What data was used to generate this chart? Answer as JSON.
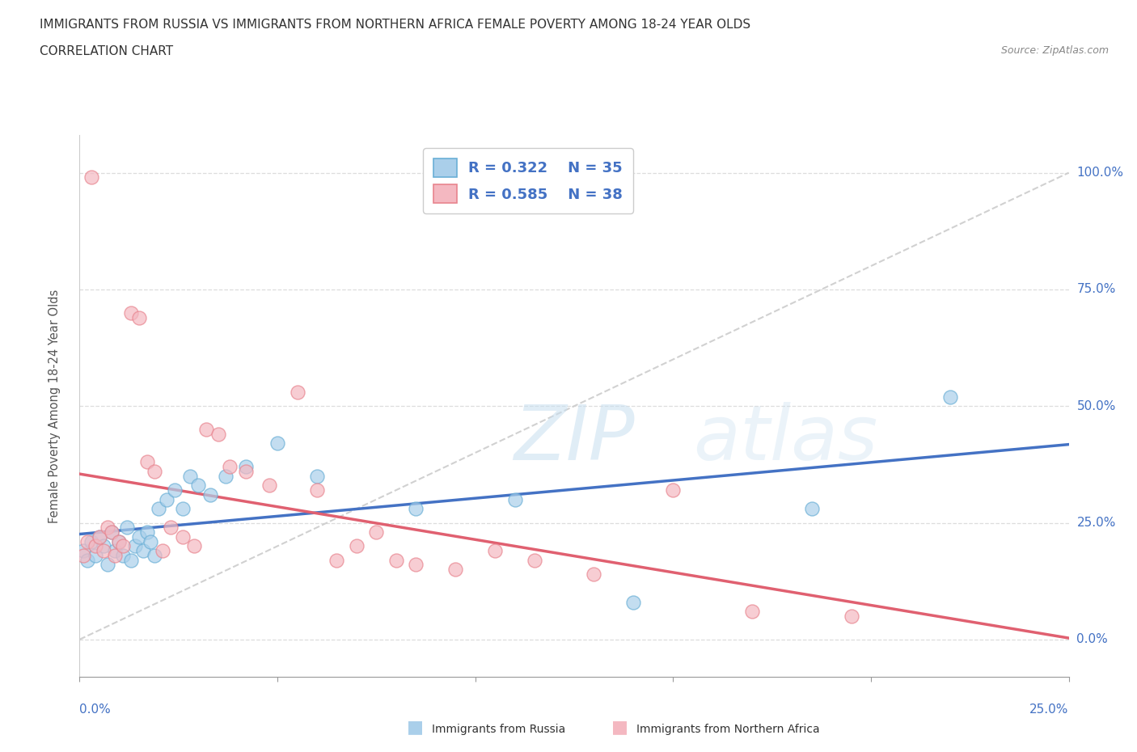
{
  "title": "IMMIGRANTS FROM RUSSIA VS IMMIGRANTS FROM NORTHERN AFRICA FEMALE POVERTY AMONG 18-24 YEAR OLDS",
  "subtitle": "CORRELATION CHART",
  "source": "Source: ZipAtlas.com",
  "ylabel": "Female Poverty Among 18-24 Year Olds",
  "ytick_vals": [
    0,
    25,
    50,
    75,
    100
  ],
  "ytick_labels": [
    "0.0%",
    "25.0%",
    "50.0%",
    "75.0%",
    "100.0%"
  ],
  "xlim": [
    0,
    25
  ],
  "ylim": [
    -8,
    108
  ],
  "xlim_labels": [
    "0.0%",
    "25.0%"
  ],
  "russia_R": "0.322",
  "russia_N": "35",
  "africa_R": "0.585",
  "africa_N": "38",
  "russia_color": "#aacfea",
  "russia_edge_color": "#6aafd6",
  "africa_color": "#f4b8c1",
  "africa_edge_color": "#e8848e",
  "russia_line_color": "#4472c4",
  "africa_line_color": "#e06070",
  "diag_color": "#cccccc",
  "grid_color": "#dddddd",
  "legend_text_color": "#4472c4",
  "russia_x": [
    0.1,
    0.2,
    0.3,
    0.4,
    0.5,
    0.6,
    0.7,
    0.8,
    0.9,
    1.0,
    1.1,
    1.2,
    1.3,
    1.4,
    1.5,
    1.6,
    1.7,
    1.8,
    1.9,
    2.0,
    2.2,
    2.4,
    2.6,
    2.8,
    3.0,
    3.3,
    3.7,
    4.2,
    5.0,
    6.0,
    8.5,
    11.0,
    14.0,
    18.5,
    22.0
  ],
  "russia_y": [
    19,
    17,
    21,
    18,
    22,
    20,
    16,
    23,
    19,
    21,
    18,
    24,
    17,
    20,
    22,
    19,
    23,
    21,
    18,
    28,
    30,
    32,
    28,
    35,
    33,
    31,
    35,
    37,
    42,
    35,
    28,
    30,
    8,
    28,
    52
  ],
  "africa_x": [
    0.1,
    0.2,
    0.3,
    0.4,
    0.5,
    0.6,
    0.7,
    0.8,
    0.9,
    1.0,
    1.1,
    1.3,
    1.5,
    1.7,
    1.9,
    2.1,
    2.3,
    2.6,
    2.9,
    3.2,
    3.5,
    3.8,
    4.2,
    4.8,
    5.5,
    6.0,
    6.5,
    7.0,
    7.5,
    8.0,
    8.5,
    9.5,
    10.5,
    11.5,
    13.0,
    15.0,
    17.0,
    19.5
  ],
  "africa_y": [
    18,
    21,
    99,
    20,
    22,
    19,
    24,
    23,
    18,
    21,
    20,
    70,
    69,
    38,
    36,
    19,
    24,
    22,
    20,
    45,
    44,
    37,
    36,
    33,
    53,
    32,
    17,
    20,
    23,
    17,
    16,
    15,
    19,
    17,
    14,
    32,
    6,
    5
  ]
}
